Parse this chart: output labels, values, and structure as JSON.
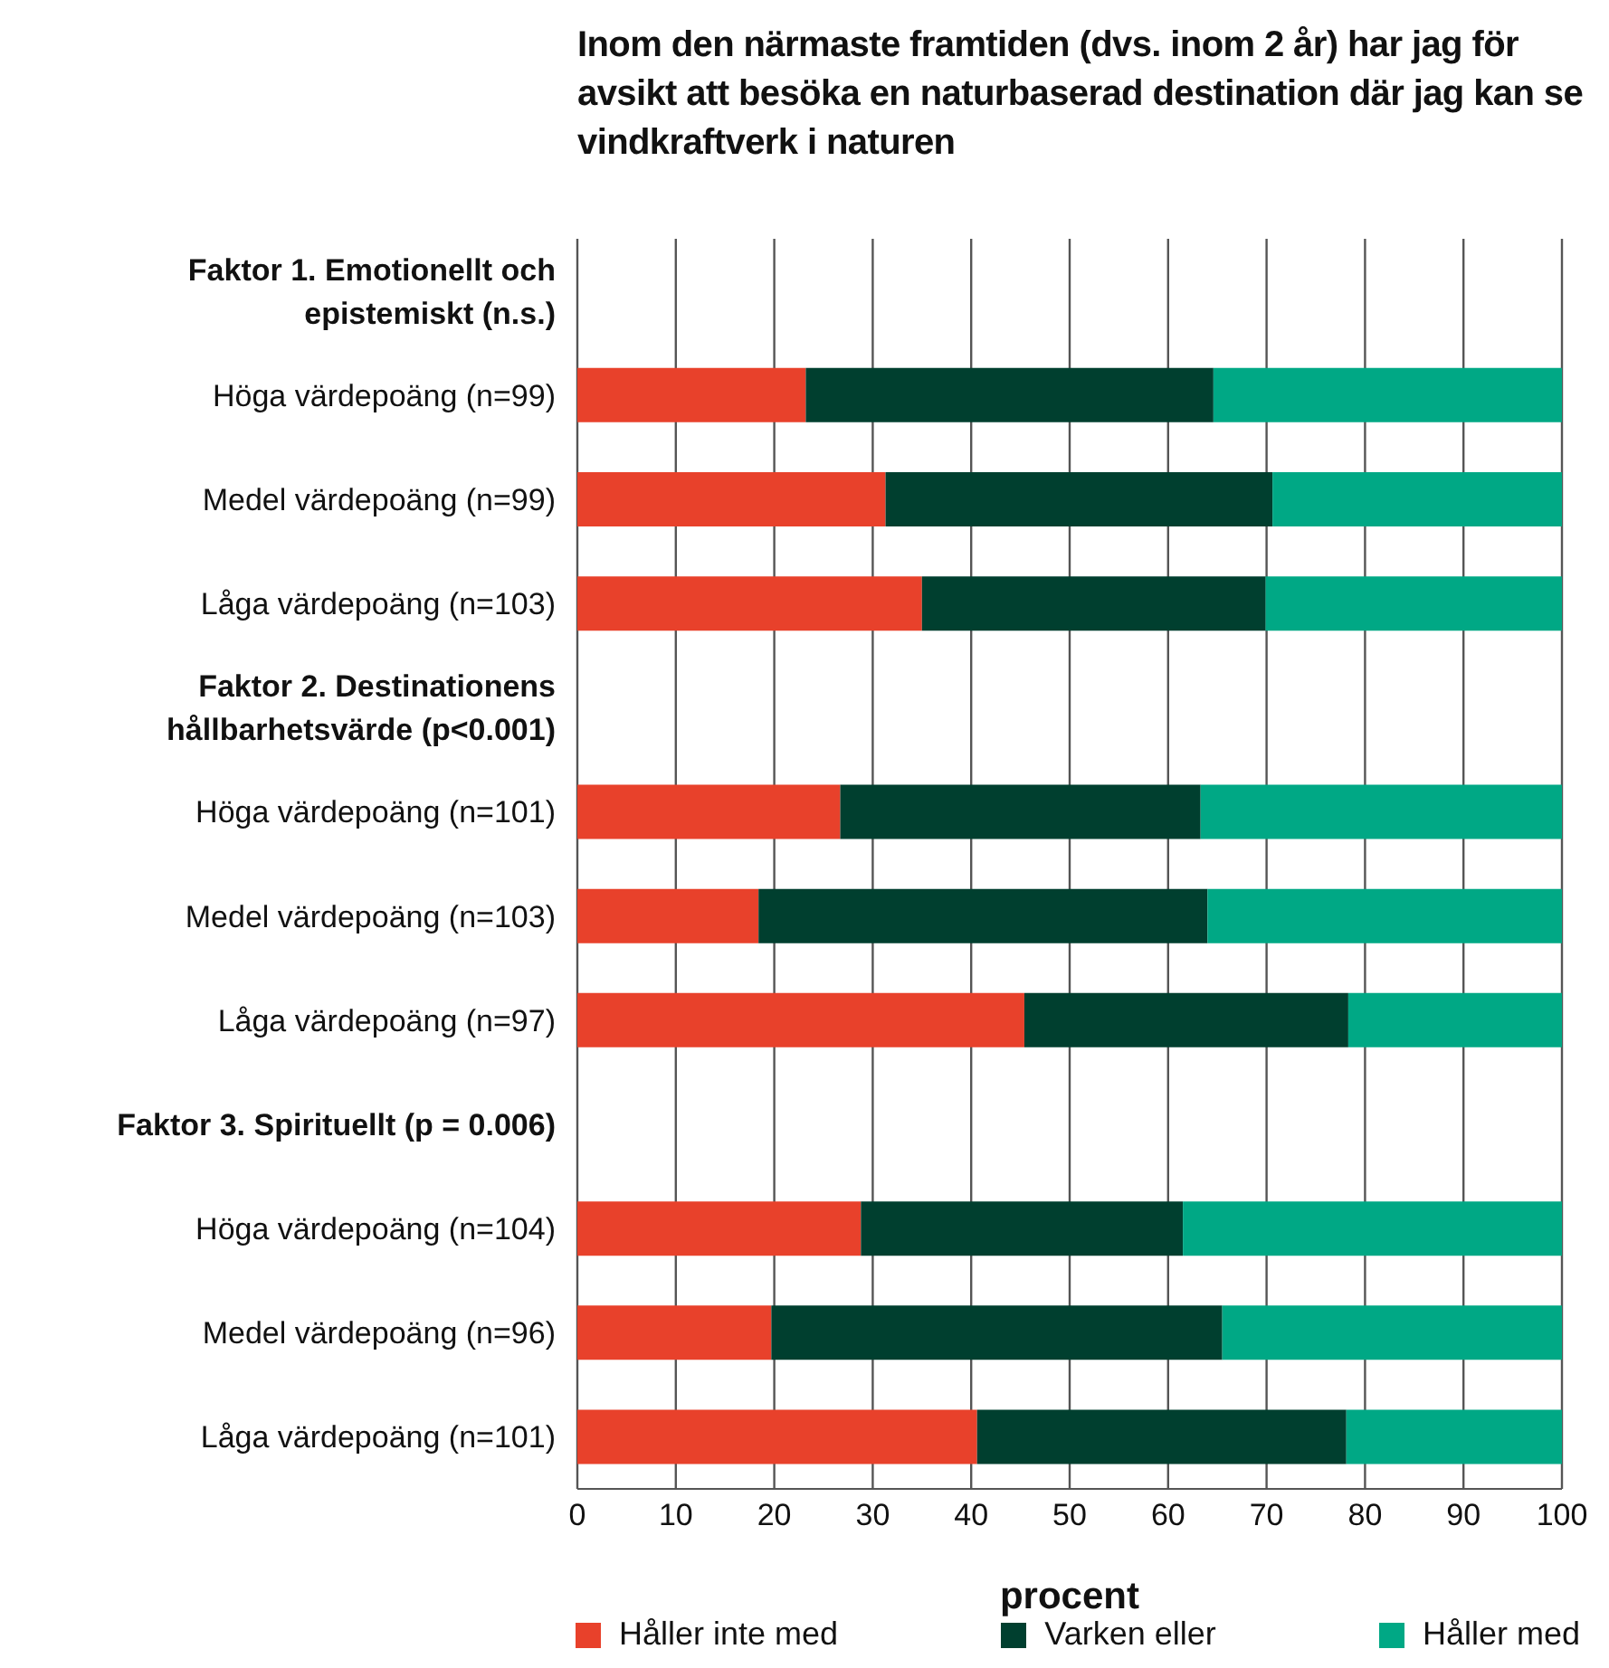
{
  "chart_data": {
    "type": "bar",
    "orientation": "horizontal",
    "stacked": true,
    "title": "Inom den närmaste framtiden (dvs. inom 2 år) har jag för avsikt att besöka en naturbaserad destination där jag kan se vindkraftverk i naturen",
    "xlabel": "procent",
    "categories": [
      "Faktor 1. Emotionellt och epistemiskt (n.s.)",
      "Höga värdepoäng (n=99)",
      "Medel värdepoäng (n=99)",
      "Låga värdepoäng (n=103)",
      "Faktor 2. Destinationens hållbarhetsvärde (p<0.001)",
      "Höga värdepoäng (n=101)",
      "Medel värdepoäng (n=103)",
      "Låga värdepoäng (n=97)",
      "Faktor 3. Spirituellt (p = 0.006)",
      "Höga värdepoäng (n=104)",
      "Medel värdepoäng (n=96)",
      "Låga värdepoäng (n=101)"
    ],
    "series": [
      {
        "name": "Håller inte med",
        "color": "#e8412b",
        "values": [
          null,
          23.2,
          31.3,
          35.0,
          null,
          26.7,
          18.4,
          45.4,
          null,
          28.8,
          19.7,
          40.6
        ]
      },
      {
        "name": "Varken eller",
        "color": "#003f2f",
        "values": [
          null,
          41.4,
          39.3,
          34.9,
          null,
          36.6,
          45.6,
          32.9,
          null,
          32.7,
          45.8,
          37.5
        ]
      },
      {
        "name": "Håller med",
        "color": "#00a885",
        "values": [
          null,
          35.4,
          29.4,
          30.1,
          null,
          36.7,
          36.0,
          21.7,
          null,
          38.5,
          34.5,
          21.9
        ]
      }
    ],
    "xlim": [
      0,
      100
    ],
    "xticks": [
      0,
      10,
      20,
      30,
      40,
      50,
      60,
      70,
      80,
      90,
      100
    ],
    "grid": "x",
    "legend": "bottom"
  }
}
